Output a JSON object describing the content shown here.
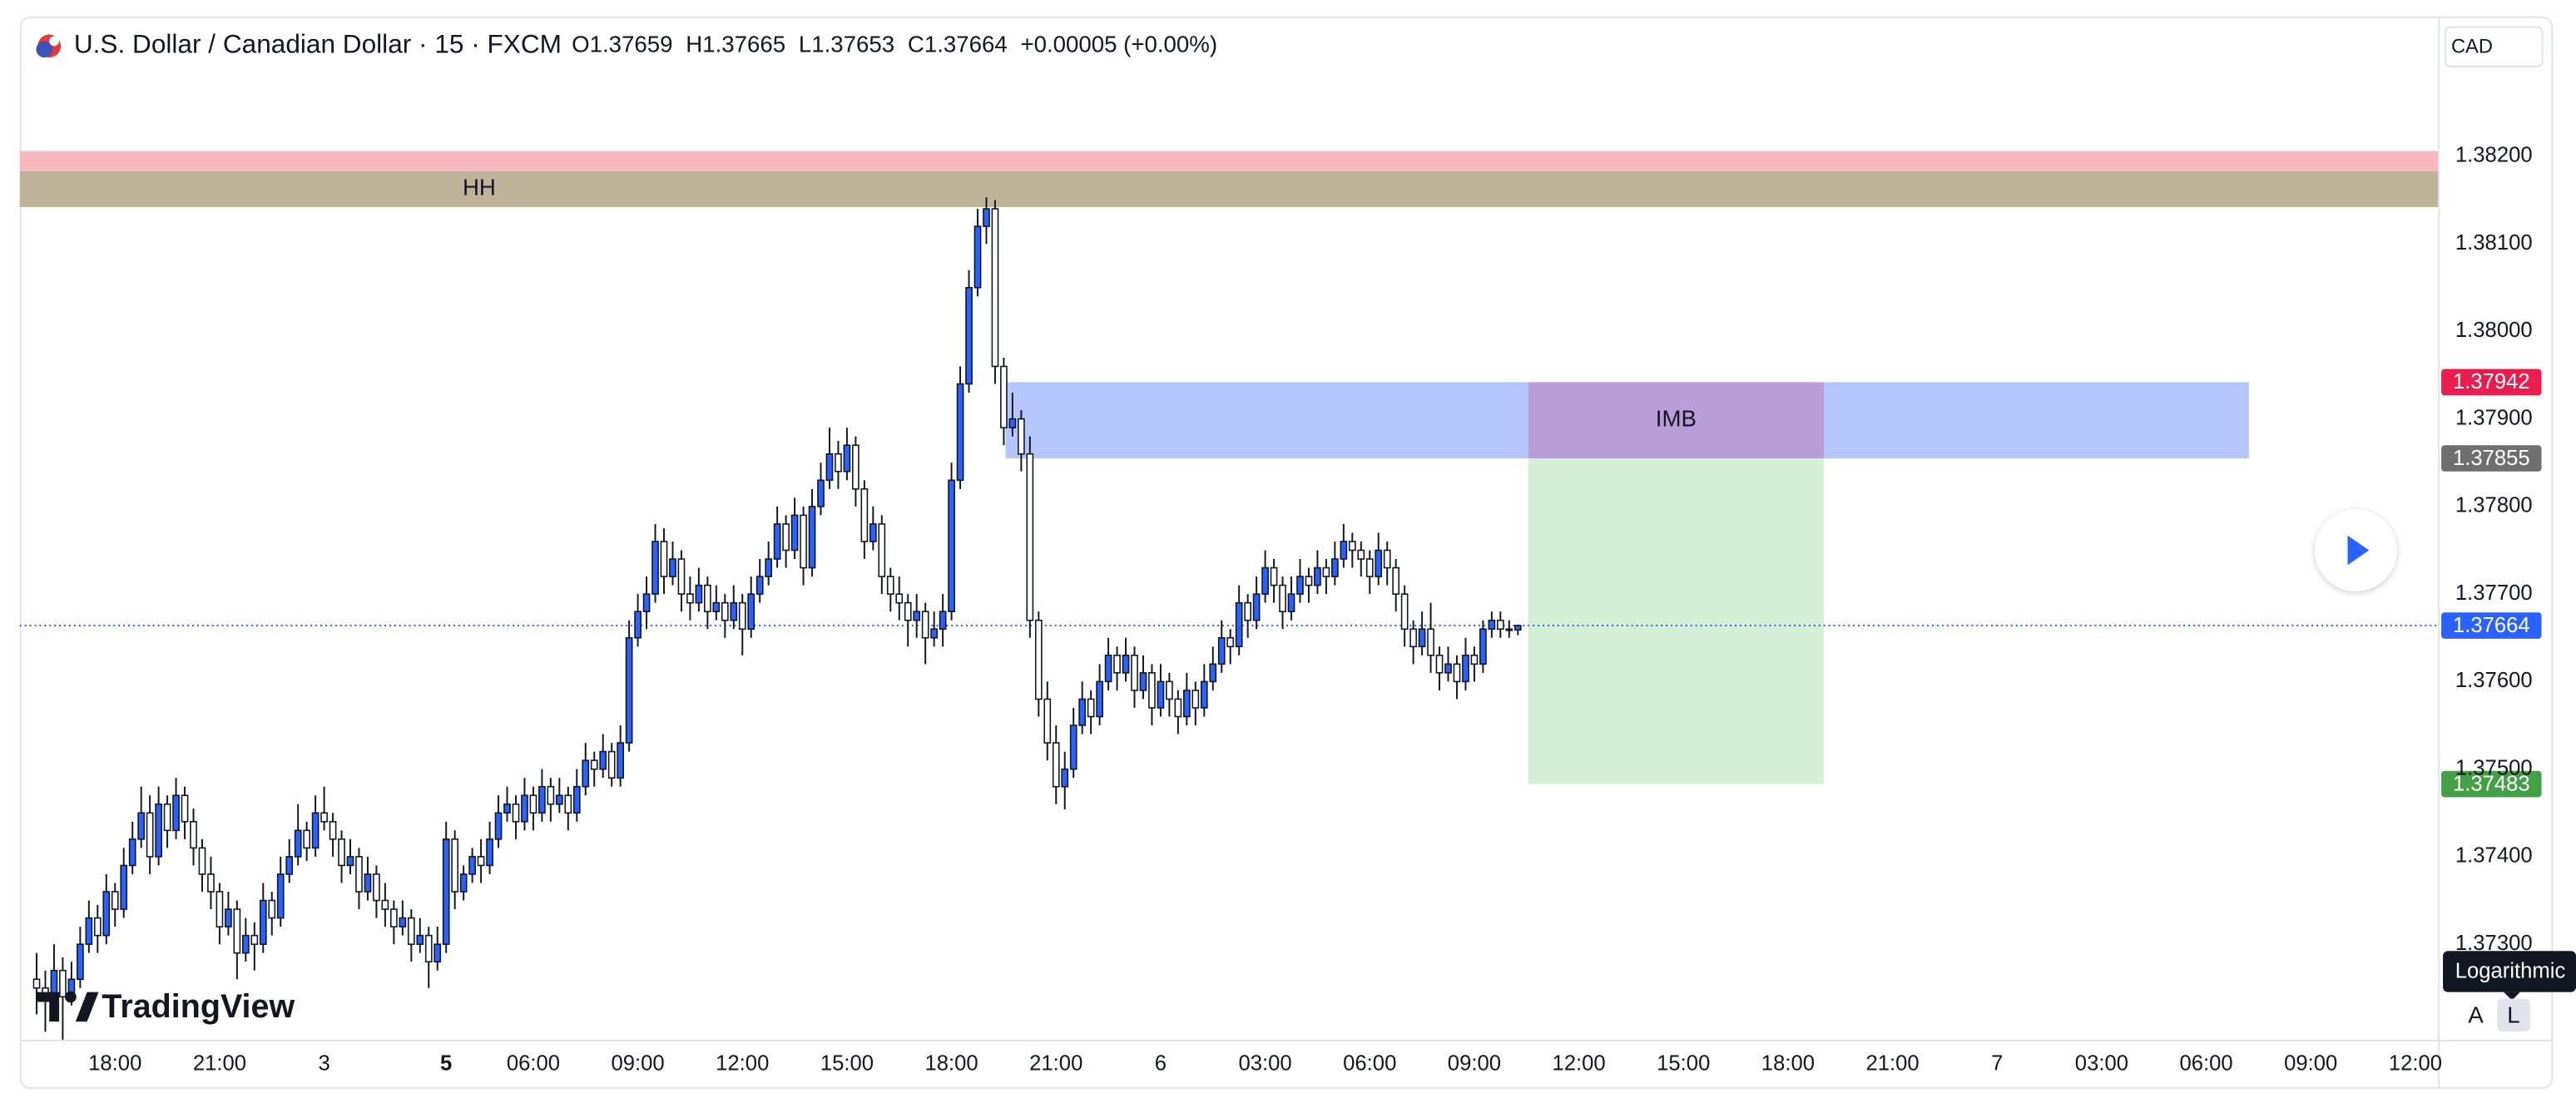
{
  "chart_data": {
    "type": "candlestick",
    "title": "U.S. Dollar / Canadian Dollar · 15 · FXCM",
    "header": {
      "labels": [
        "O",
        "H",
        "L",
        "C"
      ],
      "change": "+0.00005 (+0.00%)"
    },
    "currency": "CAD",
    "up_color": "#2962ff",
    "down_color": "#ffffff",
    "candles": [
      [
        1.3726,
        1.3729,
        1.3722,
        1.3725
      ],
      [
        1.3725,
        1.3727,
        1.372,
        1.37235
      ],
      [
        1.37235,
        1.373,
        1.37225,
        1.3727
      ],
      [
        1.3727,
        1.37285,
        1.3717,
        1.3724
      ],
      [
        1.3724,
        1.3728,
        1.3723,
        1.3726
      ],
      [
        1.3726,
        1.3732,
        1.3725,
        1.373
      ],
      [
        1.373,
        1.3735,
        1.3729,
        1.3733
      ],
      [
        1.3733,
        1.37345,
        1.3729,
        1.3731
      ],
      [
        1.3731,
        1.3738,
        1.373,
        1.3736
      ],
      [
        1.3736,
        1.3737,
        1.3732,
        1.3734
      ],
      [
        1.3734,
        1.3741,
        1.3733,
        1.3739
      ],
      [
        1.3739,
        1.3744,
        1.3738,
        1.3742
      ],
      [
        1.3742,
        1.3748,
        1.3741,
        1.3745
      ],
      [
        1.3745,
        1.3747,
        1.3738,
        1.374
      ],
      [
        1.374,
        1.3748,
        1.3739,
        1.3746
      ],
      [
        1.3746,
        1.3747,
        1.3741,
        1.3743
      ],
      [
        1.3743,
        1.3749,
        1.3742,
        1.3747
      ],
      [
        1.3747,
        1.3748,
        1.3742,
        1.3744
      ],
      [
        1.3744,
        1.37455,
        1.3739,
        1.3741
      ],
      [
        1.3741,
        1.3742,
        1.3736,
        1.3738
      ],
      [
        1.3738,
        1.374,
        1.3734,
        1.3736
      ],
      [
        1.3736,
        1.3737,
        1.373,
        1.3732
      ],
      [
        1.3732,
        1.3736,
        1.3731,
        1.3734
      ],
      [
        1.3734,
        1.3735,
        1.3726,
        1.3729
      ],
      [
        1.3729,
        1.3733,
        1.3728,
        1.3731
      ],
      [
        1.3731,
        1.37325,
        1.3727,
        1.373
      ],
      [
        1.373,
        1.3737,
        1.3729,
        1.3735
      ],
      [
        1.3735,
        1.3736,
        1.3731,
        1.3733
      ],
      [
        1.3733,
        1.374,
        1.3732,
        1.3738
      ],
      [
        1.3738,
        1.3742,
        1.3737,
        1.374
      ],
      [
        1.374,
        1.3746,
        1.3739,
        1.3743
      ],
      [
        1.3743,
        1.3744,
        1.37395,
        1.3741
      ],
      [
        1.3741,
        1.3747,
        1.374,
        1.3745
      ],
      [
        1.3745,
        1.3748,
        1.3743,
        1.3744
      ],
      [
        1.3744,
        1.3745,
        1.374,
        1.3742
      ],
      [
        1.3742,
        1.3743,
        1.3737,
        1.3739
      ],
      [
        1.3739,
        1.3742,
        1.3738,
        1.374
      ],
      [
        1.374,
        1.3741,
        1.3734,
        1.3736
      ],
      [
        1.3736,
        1.374,
        1.3735,
        1.3738
      ],
      [
        1.3738,
        1.3739,
        1.3733,
        1.3735
      ],
      [
        1.3735,
        1.3737,
        1.3732,
        1.3734
      ],
      [
        1.3734,
        1.3735,
        1.373,
        1.3732
      ],
      [
        1.3732,
        1.3735,
        1.3731,
        1.3733
      ],
      [
        1.3733,
        1.3734,
        1.3728,
        1.373
      ],
      [
        1.373,
        1.3733,
        1.3729,
        1.3731
      ],
      [
        1.3731,
        1.3732,
        1.3725,
        1.3728
      ],
      [
        1.3728,
        1.3732,
        1.3727,
        1.373
      ],
      [
        1.373,
        1.3744,
        1.3729,
        1.3742
      ],
      [
        1.3742,
        1.3743,
        1.3734,
        1.3736
      ],
      [
        1.3736,
        1.3739,
        1.3735,
        1.3738
      ],
      [
        1.3738,
        1.3741,
        1.3737,
        1.374
      ],
      [
        1.374,
        1.3742,
        1.3737,
        1.3739
      ],
      [
        1.3739,
        1.3744,
        1.3738,
        1.3742
      ],
      [
        1.3742,
        1.3747,
        1.3741,
        1.3745
      ],
      [
        1.3745,
        1.3748,
        1.3744,
        1.3746
      ],
      [
        1.3746,
        1.3747,
        1.3742,
        1.3744
      ],
      [
        1.3744,
        1.3749,
        1.3743,
        1.3747
      ],
      [
        1.3747,
        1.3748,
        1.3743,
        1.3745
      ],
      [
        1.3745,
        1.375,
        1.3744,
        1.3748
      ],
      [
        1.3748,
        1.3749,
        1.3744,
        1.3746
      ],
      [
        1.3746,
        1.3749,
        1.3745,
        1.3747
      ],
      [
        1.3747,
        1.3748,
        1.3743,
        1.3745
      ],
      [
        1.3745,
        1.375,
        1.3744,
        1.3748
      ],
      [
        1.3748,
        1.3753,
        1.3747,
        1.3751
      ],
      [
        1.3751,
        1.3752,
        1.3748,
        1.375
      ],
      [
        1.375,
        1.3754,
        1.3749,
        1.3752
      ],
      [
        1.3752,
        1.3753,
        1.3748,
        1.3749
      ],
      [
        1.3749,
        1.3755,
        1.3748,
        1.3753
      ],
      [
        1.3753,
        1.3767,
        1.3752,
        1.3765
      ],
      [
        1.3765,
        1.377,
        1.3764,
        1.3768
      ],
      [
        1.3768,
        1.3772,
        1.3766,
        1.377
      ],
      [
        1.377,
        1.3778,
        1.3769,
        1.3776
      ],
      [
        1.3776,
        1.37775,
        1.377,
        1.3772
      ],
      [
        1.3772,
        1.3776,
        1.3771,
        1.3774
      ],
      [
        1.3774,
        1.3775,
        1.3768,
        1.377
      ],
      [
        1.377,
        1.3772,
        1.3767,
        1.3769
      ],
      [
        1.3769,
        1.3773,
        1.3768,
        1.3771
      ],
      [
        1.3771,
        1.3772,
        1.3766,
        1.3768
      ],
      [
        1.3768,
        1.3771,
        1.3767,
        1.3769
      ],
      [
        1.3769,
        1.377,
        1.3765,
        1.3767
      ],
      [
        1.3767,
        1.3771,
        1.3766,
        1.3769
      ],
      [
        1.3769,
        1.377,
        1.3763,
        1.3766
      ],
      [
        1.3766,
        1.3772,
        1.3765,
        1.377
      ],
      [
        1.377,
        1.3774,
        1.3769,
        1.3772
      ],
      [
        1.3772,
        1.3776,
        1.3771,
        1.3774
      ],
      [
        1.3774,
        1.378,
        1.3773,
        1.3778
      ],
      [
        1.3778,
        1.3779,
        1.3773,
        1.3775
      ],
      [
        1.3775,
        1.3781,
        1.3774,
        1.3779
      ],
      [
        1.3779,
        1.378,
        1.3771,
        1.3773
      ],
      [
        1.3773,
        1.3782,
        1.3772,
        1.378
      ],
      [
        1.378,
        1.3785,
        1.3779,
        1.3783
      ],
      [
        1.3783,
        1.3789,
        1.3782,
        1.3786
      ],
      [
        1.3786,
        1.37875,
        1.3782,
        1.3784
      ],
      [
        1.3784,
        1.3789,
        1.3783,
        1.3787
      ],
      [
        1.3787,
        1.3788,
        1.378,
        1.3782
      ],
      [
        1.3782,
        1.3783,
        1.3774,
        1.3776
      ],
      [
        1.3776,
        1.378,
        1.3775,
        1.3778
      ],
      [
        1.3778,
        1.3779,
        1.377,
        1.3772
      ],
      [
        1.3772,
        1.3773,
        1.3768,
        1.377
      ],
      [
        1.377,
        1.3772,
        1.3767,
        1.3769
      ],
      [
        1.3769,
        1.377,
        1.3764,
        1.3767
      ],
      [
        1.3767,
        1.377,
        1.3765,
        1.3768
      ],
      [
        1.3768,
        1.3769,
        1.3762,
        1.3765
      ],
      [
        1.3765,
        1.3768,
        1.3764,
        1.3766
      ],
      [
        1.3766,
        1.377,
        1.3764,
        1.3768
      ],
      [
        1.3768,
        1.3785,
        1.3767,
        1.3783
      ],
      [
        1.3783,
        1.3796,
        1.3782,
        1.3794
      ],
      [
        1.3794,
        1.3807,
        1.3793,
        1.3805
      ],
      [
        1.3805,
        1.3814,
        1.3804,
        1.3812
      ],
      [
        1.3812,
        1.38153,
        1.381,
        1.3814
      ],
      [
        1.3814,
        1.3815,
        1.3794,
        1.3796
      ],
      [
        1.3796,
        1.3797,
        1.3787,
        1.3789
      ],
      [
        1.3789,
        1.3793,
        1.3788,
        1.379
      ],
      [
        1.379,
        1.3791,
        1.3784,
        1.3786
      ],
      [
        1.3786,
        1.3788,
        1.3765,
        1.3767
      ],
      [
        1.3767,
        1.3768,
        1.3756,
        1.3758
      ],
      [
        1.3758,
        1.376,
        1.3751,
        1.3753
      ],
      [
        1.3753,
        1.3755,
        1.3746,
        1.3748
      ],
      [
        1.3748,
        1.3752,
        1.37454,
        1.375
      ],
      [
        1.375,
        1.3757,
        1.3749,
        1.3755
      ],
      [
        1.3755,
        1.376,
        1.3754,
        1.3758
      ],
      [
        1.3758,
        1.3759,
        1.3754,
        1.3756
      ],
      [
        1.3756,
        1.3762,
        1.3755,
        1.376
      ],
      [
        1.376,
        1.3765,
        1.3759,
        1.3763
      ],
      [
        1.3763,
        1.3764,
        1.3759,
        1.3761
      ],
      [
        1.3761,
        1.3765,
        1.376,
        1.3763
      ],
      [
        1.3763,
        1.3764,
        1.3757,
        1.3759
      ],
      [
        1.3759,
        1.3763,
        1.3758,
        1.3761
      ],
      [
        1.3761,
        1.3762,
        1.3755,
        1.3757
      ],
      [
        1.3757,
        1.3762,
        1.3756,
        1.376
      ],
      [
        1.376,
        1.3761,
        1.3756,
        1.3758
      ],
      [
        1.3758,
        1.3759,
        1.3754,
        1.3756
      ],
      [
        1.3756,
        1.3761,
        1.3755,
        1.3759
      ],
      [
        1.3759,
        1.376,
        1.3755,
        1.3757
      ],
      [
        1.3757,
        1.3762,
        1.3756,
        1.376
      ],
      [
        1.376,
        1.3764,
        1.3759,
        1.3762
      ],
      [
        1.3762,
        1.3767,
        1.3761,
        1.3765
      ],
      [
        1.3765,
        1.3766,
        1.3762,
        1.3764
      ],
      [
        1.3764,
        1.3771,
        1.3763,
        1.3769
      ],
      [
        1.3769,
        1.377,
        1.3765,
        1.3767
      ],
      [
        1.3767,
        1.3772,
        1.3766,
        1.377
      ],
      [
        1.377,
        1.3775,
        1.3769,
        1.3773
      ],
      [
        1.3773,
        1.3774,
        1.3769,
        1.3771
      ],
      [
        1.3771,
        1.3772,
        1.3766,
        1.3768
      ],
      [
        1.3768,
        1.3772,
        1.3767,
        1.377
      ],
      [
        1.377,
        1.3774,
        1.3769,
        1.3772
      ],
      [
        1.3772,
        1.3773,
        1.3769,
        1.3771
      ],
      [
        1.3771,
        1.3775,
        1.377,
        1.3773
      ],
      [
        1.3773,
        1.3774,
        1.377,
        1.3772
      ],
      [
        1.3772,
        1.3776,
        1.3771,
        1.3774
      ],
      [
        1.3774,
        1.3778,
        1.3773,
        1.3776
      ],
      [
        1.3776,
        1.3777,
        1.3773,
        1.3775
      ],
      [
        1.3775,
        1.3776,
        1.3772,
        1.3774
      ],
      [
        1.3774,
        1.3775,
        1.377,
        1.3772
      ],
      [
        1.3772,
        1.3777,
        1.3771,
        1.3775
      ],
      [
        1.3775,
        1.3776,
        1.3771,
        1.3773
      ],
      [
        1.3773,
        1.3774,
        1.3768,
        1.377
      ],
      [
        1.377,
        1.3771,
        1.3764,
        1.3766
      ],
      [
        1.3766,
        1.3767,
        1.3762,
        1.3764
      ],
      [
        1.3764,
        1.3768,
        1.3763,
        1.3766
      ],
      [
        1.3766,
        1.3769,
        1.3761,
        1.3763
      ],
      [
        1.3763,
        1.3764,
        1.3759,
        1.3761
      ],
      [
        1.3761,
        1.3764,
        1.376,
        1.3762
      ],
      [
        1.3762,
        1.3763,
        1.3758,
        1.376
      ],
      [
        1.376,
        1.3765,
        1.3759,
        1.3763
      ],
      [
        1.3763,
        1.3764,
        1.376,
        1.3762
      ],
      [
        1.3762,
        1.3767,
        1.3761,
        1.3766
      ],
      [
        1.3766,
        1.3768,
        1.3765,
        1.3767
      ],
      [
        1.3767,
        1.3768,
        1.3765,
        1.3766
      ],
      [
        1.3766,
        1.3767,
        1.3765,
        1.37659
      ],
      [
        1.37659,
        1.37665,
        1.37653,
        1.37664
      ]
    ],
    "xlim": [
      -1.94,
      275.6
    ],
    "xticks": [
      {
        "value": 9,
        "label": "18:00"
      },
      {
        "value": 21,
        "label": "21:00"
      },
      {
        "value": 33,
        "label": "3"
      },
      {
        "value": 47,
        "label": "5",
        "bold": true
      },
      {
        "value": 57,
        "label": "06:00"
      },
      {
        "value": 69,
        "label": "09:00"
      },
      {
        "value": 81,
        "label": "12:00"
      },
      {
        "value": 93,
        "label": "15:00"
      },
      {
        "value": 105,
        "label": "18:00"
      },
      {
        "value": 117,
        "label": "21:00"
      },
      {
        "value": 129,
        "label": "6"
      },
      {
        "value": 141,
        "label": "03:00"
      },
      {
        "value": 153,
        "label": "06:00"
      },
      {
        "value": 165,
        "label": "09:00"
      },
      {
        "value": 177,
        "label": "12:00"
      },
      {
        "value": 189,
        "label": "15:00"
      },
      {
        "value": 201,
        "label": "18:00"
      },
      {
        "value": 213,
        "label": "21:00"
      },
      {
        "value": 225,
        "label": "7"
      },
      {
        "value": 237,
        "label": "03:00"
      },
      {
        "value": 249,
        "label": "06:00"
      },
      {
        "value": 261,
        "label": "09:00"
      },
      {
        "value": 273,
        "label": "12:00"
      }
    ],
    "ylim": [
      1.37191,
      1.38356
    ],
    "yticks": [
      {
        "value": 1.373,
        "label": "1.37300"
      },
      {
        "value": 1.374,
        "label": "1.37400"
      },
      {
        "value": 1.375,
        "label": "1.37500"
      },
      {
        "value": 1.376,
        "label": "1.37600"
      },
      {
        "value": 1.377,
        "label": "1.37700"
      },
      {
        "value": 1.378,
        "label": "1.37800"
      },
      {
        "value": 1.379,
        "label": "1.37900"
      },
      {
        "value": 1.38,
        "label": "1.38000"
      },
      {
        "value": 1.381,
        "label": "1.38100"
      },
      {
        "value": 1.382,
        "label": "1.38200"
      }
    ],
    "grid": false,
    "log_scale": false,
    "zones": [
      {
        "top": 1.38206,
        "bottom": 1.38183,
        "color": "#f7b8c0"
      },
      {
        "top": 1.38183,
        "bottom": 1.38142,
        "color": "#beb298",
        "label": "HH"
      },
      {
        "top": 1.37942,
        "bottom": 1.37855,
        "start": 111.2,
        "end": 253.9,
        "color": "#b4c6fb"
      },
      {
        "top": 1.37855,
        "bottom": 1.37483,
        "start": 171.2,
        "end": 205.1,
        "color": "#d5eed6"
      },
      {
        "top": 1.37942,
        "bottom": 1.37855,
        "start": 171.2,
        "end": 205.1,
        "color": "#b99dd8",
        "label": "IMB"
      }
    ],
    "levels": [
      {
        "value": 1.37942,
        "color": "#e91e4f"
      },
      {
        "value": 1.37855,
        "color": "#6f6f6f"
      },
      {
        "value": 1.37664,
        "color": "#2962ff",
        "line": "dotted"
      },
      {
        "value": 1.37483,
        "color": "#43a047"
      }
    ],
    "scale_buttons": [
      "A",
      "L"
    ],
    "tooltip": "Logarithmic",
    "watermark": "TradingView"
  }
}
